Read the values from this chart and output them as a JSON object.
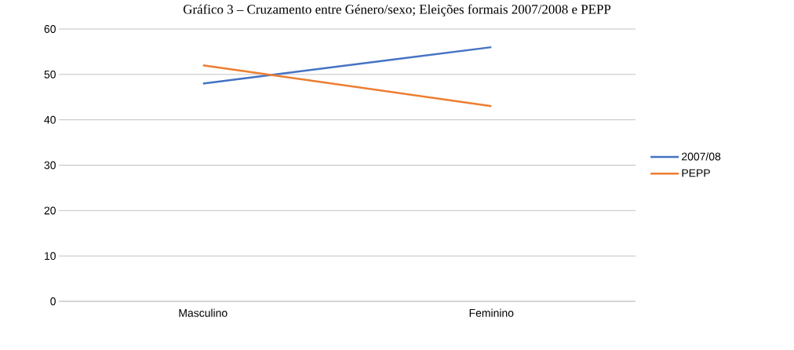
{
  "chart_data": {
    "type": "line",
    "title": "Gráfico 3 – Cruzamento entre Género/sexo; Eleições formais 2007/2008 e PEPP",
    "categories": [
      "Masculino",
      "Feminino"
    ],
    "series": [
      {
        "name": "2007/08",
        "color": "#4472c4",
        "values": [
          48,
          56
        ]
      },
      {
        "name": "PEPP",
        "color": "#ed7d31",
        "values": [
          52,
          43
        ]
      }
    ],
    "ylim": [
      0,
      60
    ],
    "yticks": [
      0,
      10,
      20,
      30,
      40,
      50,
      60
    ],
    "grid": "y",
    "legend": "right",
    "marker": "none",
    "line_style": "solid"
  }
}
